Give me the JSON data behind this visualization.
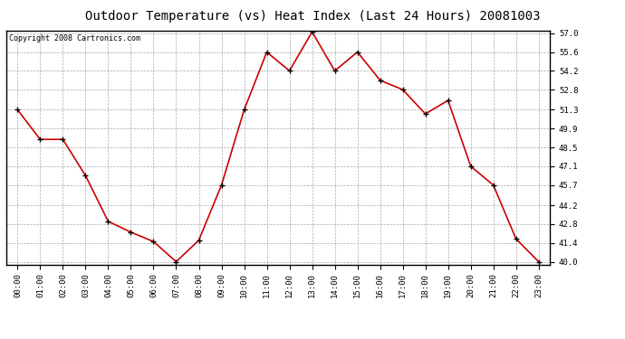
{
  "title": "Outdoor Temperature (vs) Heat Index (Last 24 Hours) 20081003",
  "copyright": "Copyright 2008 Cartronics.com",
  "x_labels": [
    "00:00",
    "01:00",
    "02:00",
    "03:00",
    "04:00",
    "05:00",
    "06:00",
    "07:00",
    "08:00",
    "09:00",
    "10:00",
    "11:00",
    "12:00",
    "13:00",
    "14:00",
    "15:00",
    "16:00",
    "17:00",
    "18:00",
    "19:00",
    "20:00",
    "21:00",
    "22:00",
    "23:00"
  ],
  "y_values": [
    51.3,
    49.1,
    49.1,
    46.4,
    43.0,
    42.2,
    41.5,
    40.0,
    41.6,
    45.7,
    51.3,
    55.6,
    54.2,
    57.1,
    54.2,
    55.6,
    53.5,
    52.8,
    51.0,
    52.0,
    47.1,
    45.7,
    41.7,
    40.0
  ],
  "line_color": "#cc0000",
  "marker": "+",
  "marker_color": "#000000",
  "marker_size": 5,
  "bg_color": "#ffffff",
  "plot_bg_color": "#ffffff",
  "grid_color": "#aaaaaa",
  "y_min": 40.0,
  "y_max": 57.0,
  "y_ticks": [
    40.0,
    41.4,
    42.8,
    44.2,
    45.7,
    47.1,
    48.5,
    49.9,
    51.3,
    52.8,
    54.2,
    55.6,
    57.0
  ],
  "title_fontsize": 10,
  "copyright_fontsize": 6,
  "tick_fontsize": 6.5
}
